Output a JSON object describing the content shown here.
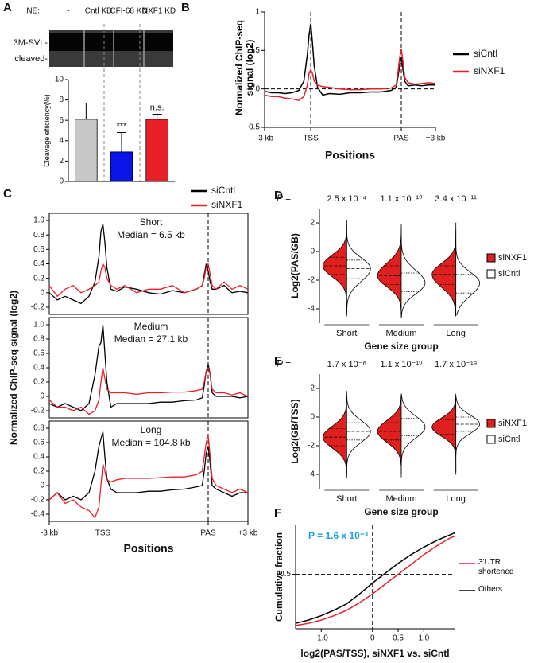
{
  "chart_data": [
    {
      "panel": "A",
      "type": "bar",
      "gel_labels": {
        "ne": "NE:",
        "lanes": [
          "-",
          "Cntl KD",
          "CFI-68 KD",
          "NXF1 KD"
        ],
        "bands": [
          "3M-SVL-",
          "cleaved-"
        ]
      },
      "ylabel": "Cleavage efiiciency(%)",
      "categories": [
        null,
        null,
        null
      ],
      "values": [
        6.1,
        2.9,
        6.1
      ],
      "errors": [
        1.6,
        1.9,
        0.5
      ],
      "colors": [
        "#c8c8c8",
        "#0a14e6",
        "#e8202a"
      ],
      "annotations": [
        null,
        "***",
        "n.s."
      ],
      "ylim": [
        0,
        10
      ],
      "yticks": [
        0,
        2,
        4,
        6,
        8,
        10
      ]
    },
    {
      "panel": "B",
      "type": "line",
      "ylabel": "Normalized ChIP-seq signal (log2)",
      "xlabel": "Positions",
      "x": [
        0,
        4,
        8,
        12,
        16,
        20,
        23,
        25,
        26,
        27,
        28,
        29,
        31,
        34,
        38,
        44,
        50,
        56,
        62,
        68,
        74,
        77,
        78,
        79,
        80,
        81,
        82,
        84,
        88,
        92,
        96,
        100
      ],
      "xlim": [
        0,
        100
      ],
      "xticks": [
        {
          "value": 0,
          "label": "-3 kb"
        },
        {
          "value": 27,
          "label": "TSS"
        },
        {
          "value": 80,
          "label": "PAS"
        },
        {
          "value": 100,
          "label": "+3 kb"
        }
      ],
      "ylim": [
        -0.5,
        1
      ],
      "yticks": [
        -0.5,
        0,
        0.5,
        1
      ],
      "zero_line": true,
      "legend": "right",
      "series": [
        {
          "name": "siCntl",
          "color": "#000000",
          "values": [
            -0.03,
            -0.05,
            -0.05,
            -0.06,
            -0.05,
            -0.02,
            0.1,
            0.45,
            0.7,
            0.85,
            0.6,
            0.3,
            0.02,
            -0.08,
            -0.06,
            -0.07,
            -0.05,
            -0.05,
            -0.04,
            -0.04,
            -0.02,
            0.02,
            0.15,
            0.3,
            0.42,
            0.25,
            0.1,
            0.04,
            0.05,
            0.04,
            0.05,
            0.05
          ]
        },
        {
          "name": "siNXF1",
          "color": "#e8202a",
          "values": [
            -0.08,
            -0.1,
            -0.1,
            -0.12,
            -0.13,
            -0.15,
            -0.1,
            0.05,
            0.2,
            0.25,
            0.2,
            0.1,
            0.05,
            0.03,
            0.02,
            0,
            -0.01,
            -0.01,
            0,
            0,
            0.01,
            0.05,
            0.2,
            0.4,
            0.52,
            0.35,
            0.15,
            0.08,
            0.06,
            0.07,
            0.08,
            0.07
          ]
        }
      ]
    },
    {
      "panel": "C",
      "type": "multiline",
      "ylabel": "Normalized ChIP-seq signal (log2)",
      "xlabel": "Positions",
      "legend": [
        {
          "name": "siCntl",
          "color": "#000000"
        },
        {
          "name": "siNXF1",
          "color": "#e8202a"
        }
      ],
      "x": [
        0,
        4,
        8,
        12,
        16,
        20,
        23,
        25,
        26,
        27,
        28,
        29,
        31,
        34,
        38,
        44,
        50,
        56,
        62,
        68,
        74,
        77,
        78,
        79,
        80,
        81,
        82,
        84,
        88,
        92,
        96,
        100
      ],
      "xlim": [
        0,
        100
      ],
      "xticks": [
        {
          "value": 0,
          "label": "-3 kb"
        },
        {
          "value": 27,
          "label": "TSS"
        },
        {
          "value": 80,
          "label": "PAS"
        },
        {
          "value": 100,
          "label": "+3 kb"
        }
      ],
      "subplots": [
        {
          "title": "Short",
          "median": "Median = 6.5 kb",
          "ylim": [
            -0.3,
            1.1
          ],
          "yticks": [
            -0.2,
            0,
            0.2,
            0.4,
            0.6,
            0.8,
            {
              "value": 1,
              "label": "1.0"
            }
          ],
          "series": [
            {
              "values": [
                0,
                -0.1,
                -0.05,
                -0.1,
                -0.15,
                -0.05,
                0.15,
                0.5,
                0.85,
                0.95,
                0.7,
                0.35,
                0.05,
                0.02,
                0.08,
                0.05,
                0,
                -0.02,
                0.03,
                0,
                0.05,
                0.1,
                0.25,
                0.4,
                0.3,
                0.15,
                0.05,
                0.05,
                0.1,
                0,
                0.02,
                0
              ]
            },
            {
              "values": [
                0.1,
                -0.05,
                0.05,
                0.1,
                0,
                0.05,
                0.1,
                0.15,
                0.3,
                0.4,
                0.35,
                0.2,
                0.1,
                0.05,
                0.1,
                0,
                0.05,
                0.05,
                0.1,
                0,
                0.05,
                0.1,
                0.2,
                0.35,
                0.4,
                0.25,
                0.1,
                0.05,
                0.15,
                0.05,
                0.1,
                0.05
              ]
            }
          ]
        },
        {
          "title": "Medium",
          "median": "Median = 27.1 kb",
          "ylim": [
            -0.3,
            1.1
          ],
          "yticks": [
            -0.2,
            0,
            0.2,
            0.4,
            0.6,
            0.8,
            {
              "value": 1,
              "label": "1.0"
            }
          ],
          "series": [
            {
              "values": [
                -0.1,
                -0.15,
                -0.1,
                -0.15,
                -0.2,
                -0.1,
                0.3,
                0.7,
                0.75,
                1,
                0.6,
                0.2,
                -0.15,
                -0.1,
                -0.1,
                -0.1,
                -0.1,
                -0.08,
                -0.08,
                -0.06,
                -0.05,
                -0.02,
                0.15,
                0.35,
                0.45,
                0.3,
                0.05,
                0,
                0,
                0,
                -0.02,
                0
              ]
            },
            {
              "values": [
                -0.05,
                -0.15,
                -0.15,
                -0.2,
                -0.15,
                -0.25,
                -0.2,
                -0.05,
                0.2,
                0.4,
                0.25,
                0.1,
                0.05,
                0.05,
                0.05,
                0.03,
                0.05,
                0.05,
                0.06,
                0.06,
                0.08,
                0.1,
                0.2,
                0.35,
                0.4,
                0.3,
                0.1,
                0.05,
                0.05,
                0.02,
                0.05,
                0
              ]
            }
          ]
        },
        {
          "title": "Long",
          "median": "Median = 104.8 kb",
          "ylim": [
            -0.5,
            0.9
          ],
          "yticks": [
            -0.4,
            -0.2,
            0,
            0.2,
            0.4,
            0.6,
            0.8
          ],
          "series": [
            {
              "values": [
                -0.2,
                -0.1,
                -0.2,
                -0.15,
                -0.2,
                -0.1,
                0.2,
                0.55,
                0.65,
                0.75,
                0.4,
                0.1,
                -0.05,
                -0.1,
                -0.1,
                -0.1,
                -0.08,
                -0.08,
                -0.06,
                -0.05,
                -0.02,
                0,
                0.2,
                0.45,
                0.55,
                0.3,
                0,
                -0.05,
                -0.1,
                -0.15,
                -0.1,
                -0.1
              ]
            },
            {
              "values": [
                -0.2,
                -0.1,
                -0.25,
                -0.2,
                -0.3,
                -0.35,
                -0.45,
                -0.3,
                0,
                0.3,
                0.2,
                0.08,
                0.05,
                0.08,
                0.1,
                0.1,
                0.1,
                0.11,
                0.12,
                0.12,
                0.15,
                0.2,
                0.4,
                0.6,
                0.7,
                0.4,
                0.1,
                0,
                -0.05,
                -0.1,
                -0.05,
                -0.1
              ]
            }
          ]
        }
      ]
    },
    {
      "panel": "D",
      "type": "violin",
      "ylabel": "Log2(PAS/GB)",
      "xlabel": "Gene size group",
      "p_label": "P =",
      "p_values": [
        "2.5 x 10⁻⁴",
        "1.1 x 10⁻¹⁰",
        "3.4 x 10⁻¹¹"
      ],
      "categories": [
        "Short",
        "Medium",
        "Long"
      ],
      "ylim": [
        -5,
        3
      ],
      "yticks": [
        -4,
        -2,
        0,
        2
      ],
      "series": [
        {
          "name": "siNXF1",
          "color": "#e0201e",
          "values": [
            {
              "min": -4.5,
              "q1": -1.6,
              "median": -1,
              "q3": -0.4,
              "max": 1.8
            },
            {
              "min": -4.5,
              "q1": -2.3,
              "median": -1.7,
              "q3": -1,
              "max": 1.6
            },
            {
              "min": -4.5,
              "q1": -2.3,
              "median": -1.6,
              "q3": -1,
              "max": 1.5
            }
          ]
        },
        {
          "name": "siCntl",
          "color": "#ffffff",
          "values": [
            {
              "min": -4.3,
              "q1": -1.9,
              "median": -1.2,
              "q3": -0.6,
              "max": 2.2
            },
            {
              "min": -4.6,
              "q1": -2.8,
              "median": -2.2,
              "q3": -1.5,
              "max": 1.9
            },
            {
              "min": -4.4,
              "q1": -2.9,
              "median": -2.2,
              "q3": -1.6,
              "max": 2
            }
          ]
        }
      ]
    },
    {
      "panel": "E",
      "type": "violin",
      "ylabel": "Log2(GB/TSS)",
      "xlabel": "Gene size group",
      "p_label": "P =",
      "p_values": [
        "1.7 x 10⁻⁶",
        "1.1 x 10⁻¹⁰",
        "1.7 x 10⁻¹⁹"
      ],
      "categories": [
        "Short",
        "Medium",
        "Long"
      ],
      "ylim": [
        -5,
        3
      ],
      "yticks": [
        -4,
        -2,
        0,
        2
      ],
      "series": [
        {
          "name": "siNXF1",
          "color": "#e0201e",
          "values": [
            {
              "min": -4.2,
              "q1": -2,
              "median": -1.4,
              "q3": -0.8,
              "max": 1.8
            },
            {
              "min": -4.2,
              "q1": -1.6,
              "median": -1,
              "q3": -0.4,
              "max": 1.5
            },
            {
              "min": -4,
              "q1": -1.2,
              "median": -0.7,
              "q3": -0.2,
              "max": 1.6
            }
          ]
        },
        {
          "name": "siCntl",
          "color": "#ffffff",
          "values": [
            {
              "min": -4,
              "q1": -1.6,
              "median": -1,
              "q3": -0.4,
              "max": 1.5
            },
            {
              "min": -4,
              "q1": -1.3,
              "median": -0.7,
              "q3": -0.1,
              "max": 1.6
            },
            {
              "min": -3.8,
              "q1": -1,
              "median": -0.5,
              "q3": 0,
              "max": 1.4
            }
          ]
        }
      ]
    },
    {
      "panel": "F",
      "type": "cumulative",
      "ylabel": "Cumulative fraction",
      "xlabel": "log2(PAS/TSS), siNXF1 vs. siCntl",
      "annotation": "P = 1.6 x 10⁻³",
      "crosshair": true,
      "x": [
        -1.5,
        -1.25,
        -1,
        -0.75,
        -0.5,
        -0.25,
        0,
        0.25,
        0.5,
        0.75,
        1,
        1.25,
        1.5,
        1.6
      ],
      "xlim": [
        -1.5,
        1.6
      ],
      "xticks": [
        {
          "value": -1,
          "label": "-1.0"
        },
        0,
        0.5,
        {
          "value": 1,
          "label": "1.0"
        }
      ],
      "ylim": [
        0,
        0.95
      ],
      "yticks": [
        0.5
      ],
      "series": [
        {
          "name": "3'UTR shortened",
          "color": "#e8202a",
          "values": [
            0.03,
            0.05,
            0.08,
            0.12,
            0.17,
            0.24,
            0.32,
            0.41,
            0.5,
            0.59,
            0.68,
            0.76,
            0.83,
            0.85
          ]
        },
        {
          "name": "Others",
          "color": "#000000",
          "values": [
            0.05,
            0.08,
            0.12,
            0.17,
            0.23,
            0.32,
            0.42,
            0.51,
            0.6,
            0.68,
            0.75,
            0.81,
            0.86,
            0.88
          ]
        }
      ]
    }
  ]
}
